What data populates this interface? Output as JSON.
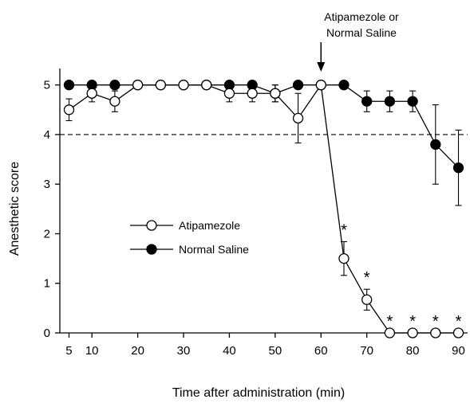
{
  "chart_data": {
    "type": "line",
    "xlabel": "Time after administration (min)",
    "ylabel": "Anesthetic score",
    "xlim": [
      3,
      92
    ],
    "ylim": [
      0,
      5.3
    ],
    "xticks": [
      5,
      10,
      20,
      30,
      40,
      50,
      60,
      70,
      80,
      90
    ],
    "yticks": [
      0,
      1,
      2,
      3,
      4,
      5
    ],
    "reference_line": {
      "y": 4,
      "style": "dashed"
    },
    "annotation": {
      "lines": [
        "Atipamezole or",
        "Normal Saline"
      ],
      "arrow_at_x": 60
    },
    "legend_position": "center-left",
    "series": [
      {
        "name": "Atipamezole",
        "marker": "open-circle",
        "x": [
          5,
          10,
          15,
          20,
          25,
          30,
          35,
          40,
          45,
          50,
          55,
          60,
          65,
          70,
          75,
          80,
          85,
          90
        ],
        "y": [
          4.5,
          4.83,
          4.67,
          5,
          5,
          5,
          5,
          4.83,
          4.83,
          4.83,
          4.33,
          5,
          1.5,
          0.67,
          0,
          0,
          0,
          0
        ],
        "err": [
          0.22,
          0.17,
          0.21,
          0,
          0,
          0,
          0,
          0.17,
          0.17,
          0.17,
          0.5,
          0,
          0.34,
          0.21,
          0,
          0,
          0,
          0
        ],
        "significant": [
          false,
          false,
          false,
          false,
          false,
          false,
          false,
          false,
          false,
          false,
          false,
          false,
          true,
          true,
          true,
          true,
          true,
          true
        ]
      },
      {
        "name": "Normal Saline",
        "marker": "filled-circle",
        "x": [
          5,
          10,
          15,
          20,
          25,
          30,
          35,
          40,
          45,
          50,
          55,
          60,
          65,
          70,
          75,
          80,
          85,
          90
        ],
        "y": [
          5,
          5,
          5,
          5,
          5,
          5,
          5,
          5,
          5,
          4.83,
          5,
          5,
          5,
          4.67,
          4.67,
          4.67,
          3.8,
          3.33
        ],
        "err": [
          0,
          0,
          0,
          0,
          0,
          0,
          0,
          0,
          0,
          0.17,
          0,
          0,
          0,
          0.21,
          0.21,
          0.21,
          0.8,
          0.76
        ]
      }
    ]
  },
  "colors": {
    "axis": "#000000",
    "open_fill": "#ffffff",
    "filled_fill": "#000000"
  },
  "sig_marker": "*"
}
